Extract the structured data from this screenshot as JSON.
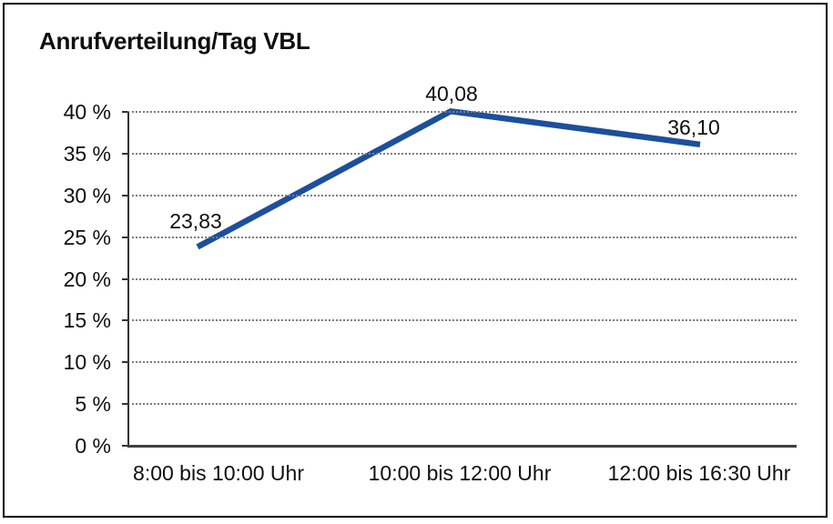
{
  "title": "Anrufverteilung/Tag VBL",
  "frame_border_color": "#000000",
  "chart_data": {
    "type": "line",
    "title": "Anrufverteilung/Tag VBL",
    "categories": [
      "8:00 bis 10:00 Uhr",
      "10:00 bis 12:00 Uhr",
      "12:00 bis 16:30 Uhr"
    ],
    "values": [
      23.83,
      40.08,
      36.1
    ],
    "point_labels": [
      "23,83",
      "40,08",
      "36,10"
    ],
    "ytick_values": [
      0,
      5,
      10,
      15,
      20,
      25,
      30,
      35,
      40
    ],
    "ytick_labels": [
      "0 %",
      "5 %",
      "10 %",
      "15 %",
      "20 %",
      "25 %",
      "30 %",
      "35 %",
      "40 %"
    ],
    "ylim": [
      0,
      40
    ],
    "xlabel": "",
    "ylabel": "",
    "grid": "horizontal dotted",
    "legend": "none",
    "line_color": "#1C4F9C",
    "axis_color": "#333333",
    "gridline_color": "#7D7D7D",
    "text_color": "#0F0F0F",
    "background": "#FFFFFF"
  }
}
